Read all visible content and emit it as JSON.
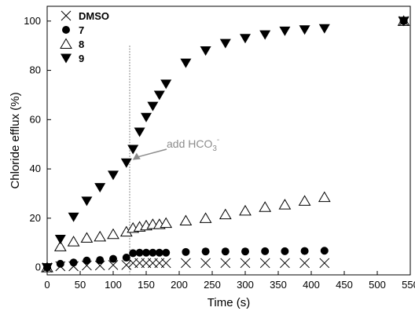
{
  "chart_data": {
    "type": "scatter",
    "title": "",
    "xlabel": "Time (s)",
    "ylabel": "Chloride efflux (%)",
    "xlim": [
      0,
      550
    ],
    "ylim": [
      -3,
      106
    ],
    "x_ticks": [
      0,
      50,
      100,
      150,
      200,
      250,
      300,
      350,
      400,
      450,
      500,
      550
    ],
    "y_ticks": [
      0,
      20,
      40,
      60,
      80,
      100
    ],
    "grid": false,
    "legend_position": "top-left",
    "series": [
      {
        "name": "DMSO",
        "marker": "x",
        "color": "#000000",
        "points": [
          [
            0,
            0
          ],
          [
            20,
            0.5
          ],
          [
            40,
            0.5
          ],
          [
            60,
            0.8
          ],
          [
            80,
            0.8
          ],
          [
            100,
            1
          ],
          [
            120,
            1
          ],
          [
            130,
            1.8
          ],
          [
            140,
            1.8
          ],
          [
            150,
            1.8
          ],
          [
            160,
            1.8
          ],
          [
            170,
            1.8
          ],
          [
            180,
            1.8
          ],
          [
            210,
            1.8
          ],
          [
            240,
            1.8
          ],
          [
            270,
            1.8
          ],
          [
            300,
            1.8
          ],
          [
            330,
            1.8
          ],
          [
            360,
            1.8
          ],
          [
            390,
            1.8
          ],
          [
            420,
            1.8
          ],
          [
            540,
            100
          ]
        ]
      },
      {
        "name": "7",
        "marker": "circle",
        "color": "#000000",
        "points": [
          [
            0,
            0
          ],
          [
            20,
            1.5
          ],
          [
            40,
            2
          ],
          [
            60,
            2.8
          ],
          [
            80,
            3
          ],
          [
            100,
            3.5
          ],
          [
            120,
            4
          ],
          [
            130,
            5.8
          ],
          [
            140,
            6
          ],
          [
            150,
            6
          ],
          [
            160,
            6
          ],
          [
            170,
            6
          ],
          [
            180,
            6
          ],
          [
            210,
            6.3
          ],
          [
            240,
            6.5
          ],
          [
            270,
            6.5
          ],
          [
            300,
            6.5
          ],
          [
            330,
            6.6
          ],
          [
            360,
            6.6
          ],
          [
            390,
            6.7
          ],
          [
            420,
            6.8
          ],
          [
            540,
            100
          ]
        ]
      },
      {
        "name": "8",
        "marker": "triangle-up-open",
        "color": "#000000",
        "points": [
          [
            0,
            0
          ],
          [
            20,
            8.5
          ],
          [
            40,
            10.5
          ],
          [
            60,
            12
          ],
          [
            80,
            12.5
          ],
          [
            100,
            13.5
          ],
          [
            120,
            14.5
          ],
          [
            130,
            16
          ],
          [
            140,
            16.5
          ],
          [
            150,
            17
          ],
          [
            160,
            17.5
          ],
          [
            170,
            17.5
          ],
          [
            180,
            18
          ],
          [
            210,
            19
          ],
          [
            240,
            20
          ],
          [
            270,
            21.5
          ],
          [
            300,
            23
          ],
          [
            330,
            24.5
          ],
          [
            360,
            25.5
          ],
          [
            390,
            27
          ],
          [
            420,
            28.5
          ],
          [
            540,
            100
          ]
        ]
      },
      {
        "name": "9",
        "marker": "triangle-down-filled",
        "color": "#000000",
        "points": [
          [
            0,
            0
          ],
          [
            20,
            11.5
          ],
          [
            40,
            20.5
          ],
          [
            60,
            27
          ],
          [
            80,
            32.5
          ],
          [
            100,
            37.5
          ],
          [
            120,
            42.5
          ],
          [
            130,
            48
          ],
          [
            140,
            55
          ],
          [
            150,
            61
          ],
          [
            160,
            65.5
          ],
          [
            170,
            70
          ],
          [
            180,
            74.5
          ],
          [
            210,
            83
          ],
          [
            240,
            88
          ],
          [
            270,
            91
          ],
          [
            300,
            93
          ],
          [
            330,
            94.5
          ],
          [
            360,
            96
          ],
          [
            390,
            96.5
          ],
          [
            420,
            97
          ],
          [
            540,
            100
          ]
        ]
      }
    ],
    "vline": {
      "x": 125,
      "style": "dotted"
    },
    "annotation": {
      "text": "add HCO",
      "subscript": "3",
      "superscript": "-",
      "points_to": [
        120,
        43
      ]
    }
  }
}
